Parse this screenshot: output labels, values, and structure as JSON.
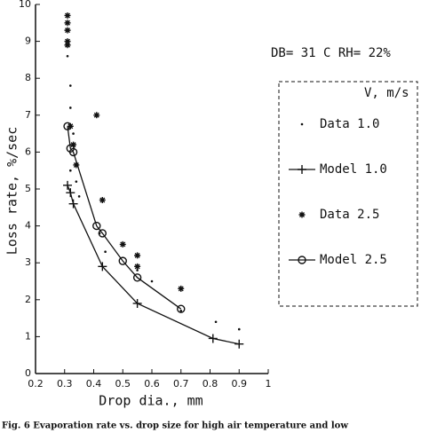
{
  "chart_data": {
    "type": "scatter",
    "x_label": "Drop dia., mm",
    "y_label": "Loss rate, %/sec",
    "annotation": "DB= 31 C  RH= 22%",
    "caption": "Fig. 6   Evaporation rate vs. drop size for high air temperature and low",
    "legend_title": "V, m/s",
    "legend": "right",
    "grid": false,
    "xlim": [
      0.2,
      1
    ],
    "ylim": [
      0,
      10
    ],
    "xticks": [
      0.2,
      0.3,
      0.4,
      0.5,
      0.6,
      0.7,
      0.8,
      0.9,
      1
    ],
    "yticks": [
      0,
      1,
      2,
      3,
      4,
      5,
      6,
      7,
      8,
      9,
      10
    ],
    "series": [
      {
        "name": "Data 1.0",
        "color": "#111111",
        "marker": "dot",
        "line": false,
        "x": [
          0.31,
          0.32,
          0.32,
          0.33,
          0.32,
          0.34,
          0.35,
          0.42,
          0.44,
          0.55,
          0.6,
          0.7,
          0.82,
          0.9
        ],
        "values": [
          8.6,
          7.8,
          7.2,
          6.5,
          5.5,
          5.2,
          4.8,
          3.8,
          3.3,
          2.8,
          2.5,
          1.7,
          1.4,
          1.2
        ]
      },
      {
        "name": "Model 1.0",
        "color": "#111111",
        "marker": "plus",
        "line": true,
        "x": [
          0.31,
          0.32,
          0.33,
          0.43,
          0.55,
          0.81,
          0.9
        ],
        "values": [
          5.1,
          4.9,
          4.6,
          2.9,
          1.9,
          0.95,
          0.8
        ]
      },
      {
        "name": "Data 2.5",
        "color": "#111111",
        "marker": "star",
        "line": false,
        "x": [
          0.31,
          0.31,
          0.31,
          0.31,
          0.31,
          0.32,
          0.33,
          0.34,
          0.41,
          0.43,
          0.5,
          0.55,
          0.55,
          0.7
        ],
        "values": [
          9.7,
          9.5,
          9.3,
          9.0,
          8.9,
          6.7,
          6.2,
          5.65,
          7.0,
          4.7,
          3.5,
          3.2,
          2.9,
          2.3
        ]
      },
      {
        "name": "Model 2.5",
        "color": "#111111",
        "marker": "circle",
        "line": true,
        "x": [
          0.31,
          0.32,
          0.33,
          0.41,
          0.43,
          0.5,
          0.55,
          0.7
        ],
        "values": [
          6.7,
          6.1,
          6.0,
          4.0,
          3.8,
          3.05,
          2.6,
          1.75
        ]
      }
    ]
  }
}
